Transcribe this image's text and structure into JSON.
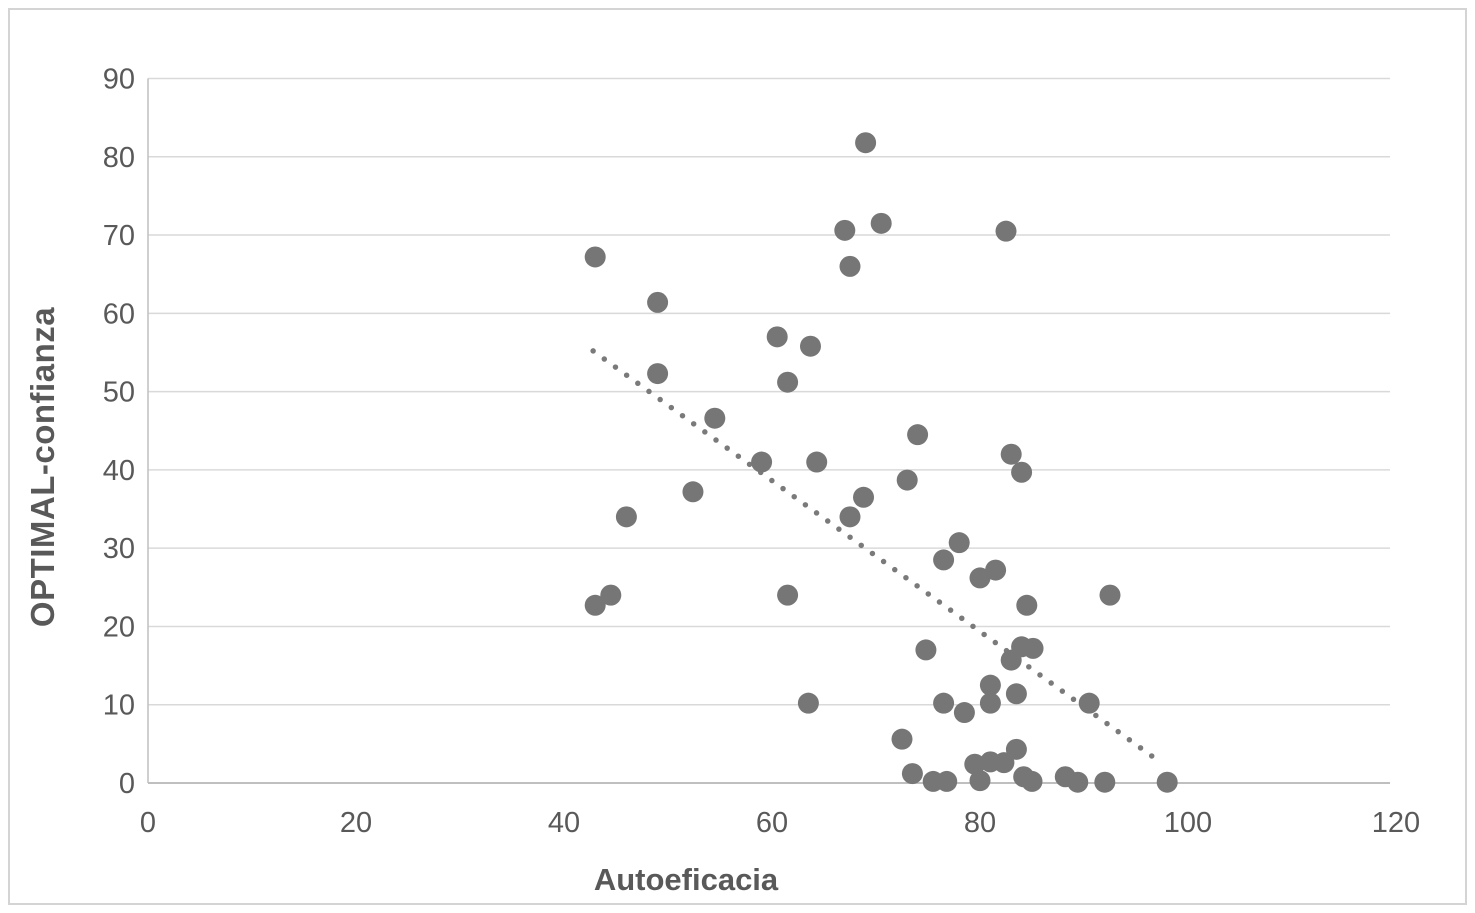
{
  "figure": {
    "kind": "excel-style scatter chart"
  },
  "chart_data": {
    "type": "scatter",
    "title": "",
    "xlabel": "Autoeficacia",
    "ylabel": "OPTIMAL-confianza",
    "xlim": [
      0,
      120
    ],
    "ylim": [
      0,
      90
    ],
    "x_ticks": [
      0,
      20,
      40,
      60,
      80,
      100,
      120
    ],
    "y_ticks": [
      0,
      10,
      20,
      30,
      40,
      50,
      60,
      70,
      80,
      90
    ],
    "grid": "horizontal-only",
    "legend_position": "none",
    "series": [
      {
        "name": "observations",
        "points": [
          [
            43,
            67.2
          ],
          [
            49,
            61.4
          ],
          [
            49,
            52.3
          ],
          [
            54.5,
            46.6
          ],
          [
            52.4,
            37.2
          ],
          [
            46,
            34
          ],
          [
            43,
            22.7
          ],
          [
            44.5,
            24
          ],
          [
            60.5,
            57
          ],
          [
            63.7,
            55.8
          ],
          [
            61.5,
            51.2
          ],
          [
            59,
            41
          ],
          [
            64.3,
            41
          ],
          [
            61.5,
            24
          ],
          [
            63.5,
            10.2
          ],
          [
            69,
            81.8
          ],
          [
            67,
            70.6
          ],
          [
            70.5,
            71.5
          ],
          [
            67.5,
            66
          ],
          [
            68.8,
            36.5
          ],
          [
            67.5,
            34
          ],
          [
            82.5,
            70.5
          ],
          [
            74,
            44.5
          ],
          [
            83,
            42
          ],
          [
            84,
            39.7
          ],
          [
            73,
            38.7
          ],
          [
            78,
            30.7
          ],
          [
            76.5,
            28.5
          ],
          [
            80,
            26.2
          ],
          [
            81.5,
            27.2
          ],
          [
            84.5,
            22.7
          ],
          [
            92.5,
            24
          ],
          [
            74.8,
            17
          ],
          [
            84,
            17.4
          ],
          [
            85.1,
            17.2
          ],
          [
            83,
            15.7
          ],
          [
            81,
            12.5
          ],
          [
            81,
            10.2
          ],
          [
            83.5,
            11.4
          ],
          [
            76.5,
            10.2
          ],
          [
            78.5,
            9
          ],
          [
            90.5,
            10.2
          ],
          [
            72.5,
            5.6
          ],
          [
            83.5,
            4.3
          ],
          [
            73.5,
            1.2
          ],
          [
            75.5,
            0.2
          ],
          [
            76.8,
            0.2
          ],
          [
            79.5,
            2.4
          ],
          [
            81,
            2.7
          ],
          [
            82.3,
            2.6
          ],
          [
            80,
            0.3
          ],
          [
            84.2,
            0.8
          ],
          [
            85,
            0.2
          ],
          [
            88.2,
            0.8
          ],
          [
            89.4,
            0.1
          ],
          [
            92,
            0.1
          ],
          [
            98,
            0.1
          ]
        ]
      }
    ],
    "trendline": {
      "style": "dotted",
      "start": {
        "x": 42.8,
        "y": 55.2
      },
      "end": {
        "x": 97.5,
        "y": 2.5
      }
    },
    "colors": {
      "point": "#767676",
      "trend": "#7a7a7a",
      "grid": "#d9d9d9",
      "axis": "#bfbfbf",
      "label": "#595959",
      "frame": "#d4d4d4",
      "background": "#ffffff"
    }
  }
}
